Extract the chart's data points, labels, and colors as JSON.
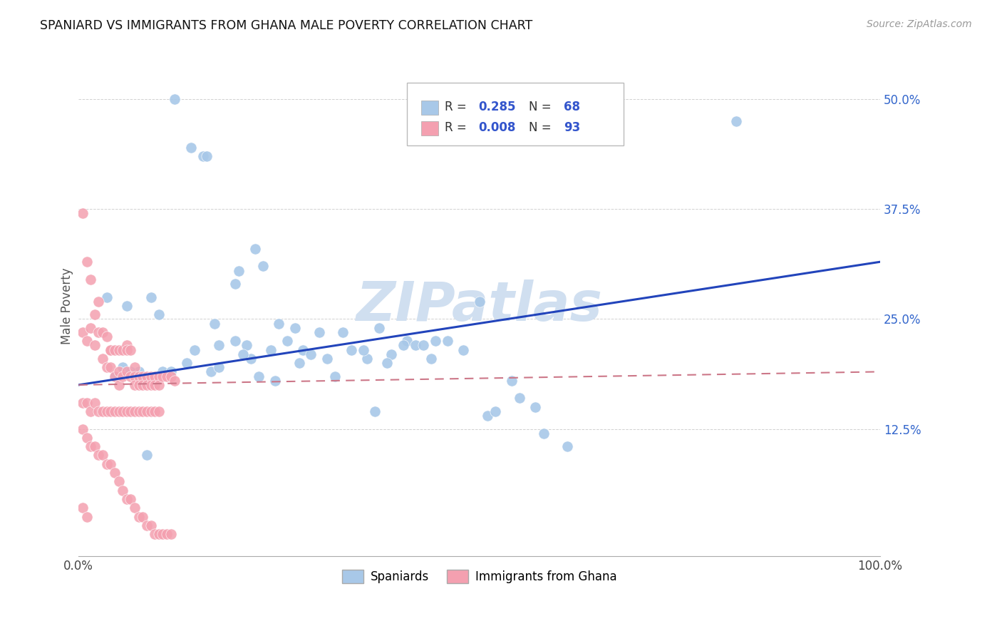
{
  "title": "SPANIARD VS IMMIGRANTS FROM GHANA MALE POVERTY CORRELATION CHART",
  "source": "Source: ZipAtlas.com",
  "ylabel": "Male Poverty",
  "xlim": [
    0,
    1.0
  ],
  "ylim": [
    -0.02,
    0.55
  ],
  "xtick_labels": [
    "0.0%",
    "",
    "",
    "",
    "100.0%"
  ],
  "xtick_vals": [
    0.0,
    0.25,
    0.5,
    0.75,
    1.0
  ],
  "ytick_labels": [
    "12.5%",
    "25.0%",
    "37.5%",
    "50.0%"
  ],
  "ytick_values": [
    0.125,
    0.25,
    0.375,
    0.5
  ],
  "legend_R1": "0.285",
  "legend_N1": "68",
  "legend_R2": "0.008",
  "legend_N2": "93",
  "blue_color": "#a8c8e8",
  "pink_color": "#f4a0b0",
  "blue_line_color": "#2244bb",
  "pink_line_color": "#cc7788",
  "watermark": "ZIPatlas",
  "watermark_color": "#d0dff0",
  "spaniards_x": [
    0.12,
    0.14,
    0.155,
    0.16,
    0.48,
    0.48,
    0.035,
    0.06,
    0.09,
    0.1,
    0.17,
    0.2,
    0.195,
    0.22,
    0.175,
    0.23,
    0.21,
    0.25,
    0.27,
    0.3,
    0.28,
    0.26,
    0.24,
    0.33,
    0.375,
    0.41,
    0.44,
    0.5,
    0.46,
    0.42,
    0.39,
    0.36,
    0.34,
    0.31,
    0.29,
    0.215,
    0.135,
    0.105,
    0.075,
    0.055,
    0.045,
    0.065,
    0.115,
    0.32,
    0.37,
    0.43,
    0.48,
    0.51,
    0.54,
    0.57,
    0.52,
    0.55,
    0.58,
    0.61,
    0.445,
    0.405,
    0.385,
    0.355,
    0.165,
    0.085,
    0.205,
    0.245,
    0.175,
    0.225,
    0.82,
    0.195,
    0.275,
    0.145
  ],
  "spaniards_y": [
    0.5,
    0.445,
    0.435,
    0.435,
    0.485,
    0.48,
    0.275,
    0.265,
    0.275,
    0.255,
    0.245,
    0.305,
    0.29,
    0.33,
    0.22,
    0.31,
    0.22,
    0.245,
    0.24,
    0.235,
    0.215,
    0.225,
    0.215,
    0.235,
    0.24,
    0.225,
    0.205,
    0.27,
    0.225,
    0.22,
    0.21,
    0.205,
    0.215,
    0.205,
    0.21,
    0.205,
    0.2,
    0.19,
    0.19,
    0.195,
    0.185,
    0.19,
    0.19,
    0.185,
    0.145,
    0.22,
    0.215,
    0.14,
    0.18,
    0.15,
    0.145,
    0.16,
    0.12,
    0.105,
    0.225,
    0.22,
    0.2,
    0.215,
    0.19,
    0.095,
    0.21,
    0.18,
    0.195,
    0.185,
    0.475,
    0.225,
    0.2,
    0.215
  ],
  "ghana_x": [
    0.005,
    0.01,
    0.015,
    0.02,
    0.025,
    0.005,
    0.01,
    0.015,
    0.02,
    0.025,
    0.03,
    0.03,
    0.035,
    0.035,
    0.04,
    0.04,
    0.04,
    0.045,
    0.045,
    0.05,
    0.05,
    0.05,
    0.055,
    0.055,
    0.06,
    0.06,
    0.06,
    0.065,
    0.065,
    0.07,
    0.07,
    0.07,
    0.075,
    0.075,
    0.08,
    0.08,
    0.085,
    0.085,
    0.09,
    0.09,
    0.095,
    0.095,
    0.1,
    0.1,
    0.105,
    0.11,
    0.115,
    0.12,
    0.005,
    0.01,
    0.015,
    0.02,
    0.025,
    0.03,
    0.035,
    0.04,
    0.045,
    0.05,
    0.055,
    0.06,
    0.065,
    0.07,
    0.075,
    0.08,
    0.085,
    0.09,
    0.095,
    0.1,
    0.005,
    0.01,
    0.015,
    0.02,
    0.025,
    0.03,
    0.035,
    0.04,
    0.045,
    0.05,
    0.055,
    0.06,
    0.065,
    0.07,
    0.075,
    0.08,
    0.085,
    0.09,
    0.095,
    0.1,
    0.105,
    0.11,
    0.115,
    0.005,
    0.01
  ],
  "ghana_y": [
    0.37,
    0.315,
    0.295,
    0.255,
    0.27,
    0.235,
    0.225,
    0.24,
    0.22,
    0.235,
    0.235,
    0.205,
    0.23,
    0.195,
    0.215,
    0.215,
    0.195,
    0.215,
    0.185,
    0.215,
    0.19,
    0.175,
    0.215,
    0.185,
    0.22,
    0.215,
    0.19,
    0.215,
    0.185,
    0.195,
    0.185,
    0.175,
    0.185,
    0.175,
    0.185,
    0.175,
    0.185,
    0.175,
    0.185,
    0.175,
    0.185,
    0.175,
    0.185,
    0.175,
    0.185,
    0.185,
    0.185,
    0.18,
    0.155,
    0.155,
    0.145,
    0.155,
    0.145,
    0.145,
    0.145,
    0.145,
    0.145,
    0.145,
    0.145,
    0.145,
    0.145,
    0.145,
    0.145,
    0.145,
    0.145,
    0.145,
    0.145,
    0.145,
    0.125,
    0.115,
    0.105,
    0.105,
    0.095,
    0.095,
    0.085,
    0.085,
    0.075,
    0.065,
    0.055,
    0.045,
    0.045,
    0.035,
    0.025,
    0.025,
    0.015,
    0.015,
    0.005,
    0.005,
    0.005,
    0.005,
    0.005,
    0.035,
    0.025
  ],
  "blue_trend_x": [
    0.0,
    1.0
  ],
  "blue_trend_y": [
    0.175,
    0.315
  ],
  "pink_trend_x": [
    0.0,
    1.0
  ],
  "pink_trend_y": [
    0.175,
    0.19
  ]
}
